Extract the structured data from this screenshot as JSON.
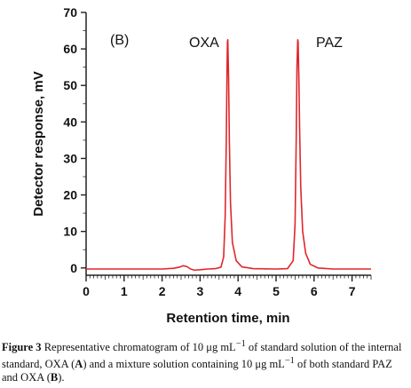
{
  "chart_data": {
    "type": "line",
    "xlabel": "Retention time, min",
    "ylabel": "Detector response, mV",
    "xlim": [
      0,
      7.5
    ],
    "ylim": [
      -2,
      70
    ],
    "x_ticks": [
      0,
      1,
      2,
      3,
      4,
      5,
      6,
      7
    ],
    "x_tick_labels": [
      "0",
      "1",
      "2",
      "3",
      "4",
      "5",
      "6",
      "7"
    ],
    "y_ticks": [
      0,
      10,
      20,
      30,
      40,
      50,
      60,
      70
    ],
    "y_tick_labels": [
      "0",
      "10",
      "20",
      "30",
      "40",
      "50",
      "60",
      "70"
    ],
    "grid": false,
    "line_color": "#e0262b",
    "annotations": [
      "(B)",
      "OXA",
      "PAZ"
    ],
    "series": [
      {
        "x": [
          0,
          1.0,
          2.0,
          2.3,
          2.45,
          2.55,
          2.65,
          2.75,
          2.85,
          3.0,
          3.2,
          3.4,
          3.55,
          3.62,
          3.66,
          3.69,
          3.71,
          3.72,
          3.73,
          3.75,
          3.77,
          3.8,
          3.85,
          3.95,
          4.1,
          4.4,
          5.0,
          5.3,
          5.45,
          5.5,
          5.53,
          5.55,
          5.57,
          5.58,
          5.6,
          5.62,
          5.65,
          5.7,
          5.78,
          5.9,
          6.1,
          6.5,
          7.5
        ],
        "y": [
          -0.3,
          -0.3,
          -0.3,
          -0.1,
          0.2,
          0.6,
          0.4,
          -0.3,
          -0.6,
          -0.5,
          -0.3,
          -0.2,
          0.2,
          3.0,
          14.0,
          35.0,
          55.0,
          62.0,
          62.5,
          52.0,
          35.0,
          18.0,
          7.0,
          2.0,
          0.3,
          -0.2,
          -0.3,
          -0.2,
          2.0,
          12.0,
          35.0,
          55.0,
          62.5,
          62.0,
          52.0,
          38.0,
          22.0,
          10.0,
          4.0,
          1.0,
          0.0,
          -0.3,
          -0.3
        ]
      }
    ]
  },
  "caption": {
    "label": "Figure 3",
    "part1": "Representative chromatogram of 10 μg mL",
    "sup1": "−1",
    "part2": " of standard solution of the internal standard, OXA (",
    "a": "A",
    "part3": ") and a mixture solution containing 10 μg mL",
    "sup2": "−1",
    "part4": " of both standard PAZ and OXA (",
    "b": "B",
    "part5": ")."
  }
}
